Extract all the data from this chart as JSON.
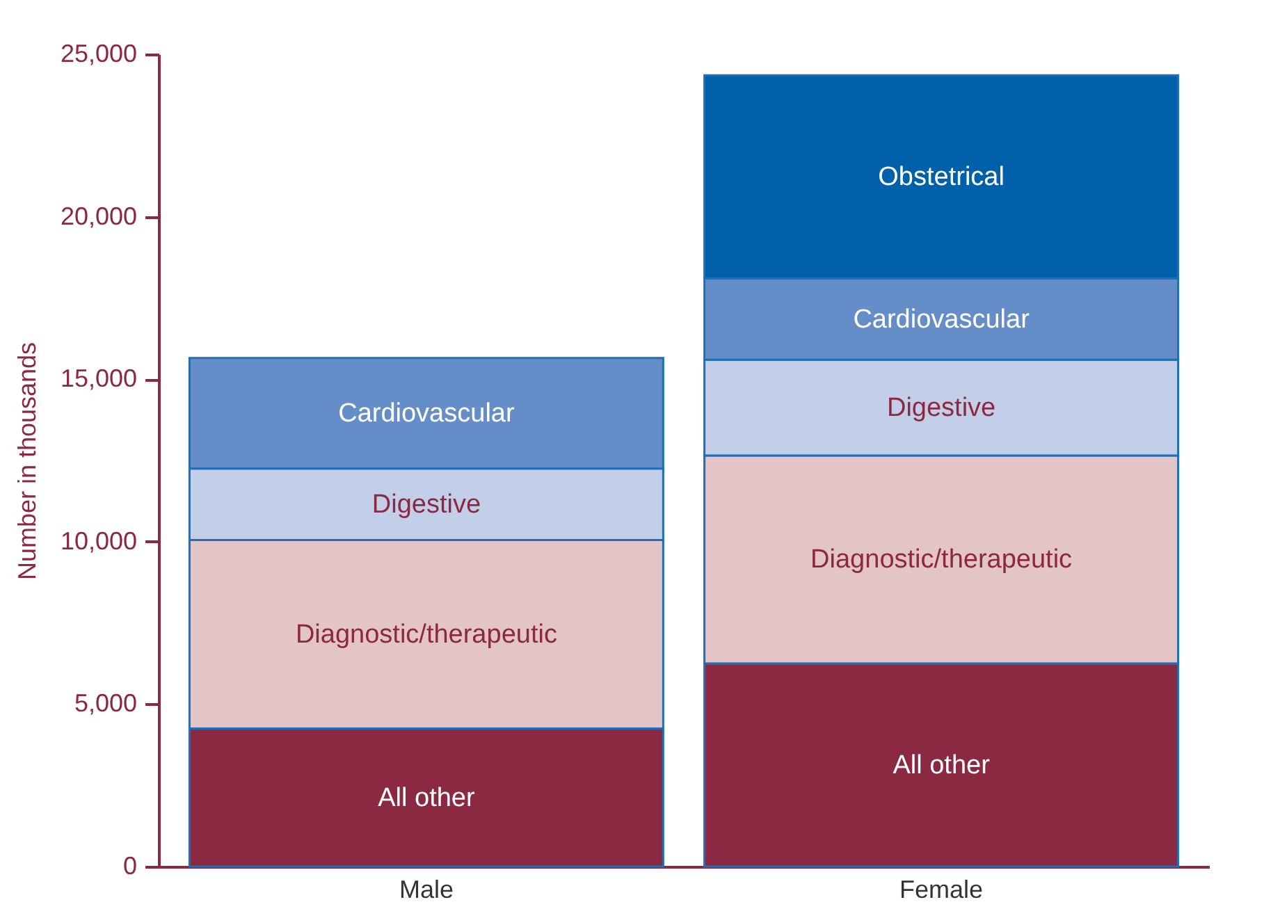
{
  "chart_data": {
    "type": "bar",
    "stacked": true,
    "ylabel": "Number in thousands",
    "categories": [
      "Male",
      "Female"
    ],
    "series": [
      {
        "name": "All other",
        "color": "#8b2942",
        "values": [
          4250,
          6250
        ]
      },
      {
        "name": "Diagnostic/therapeutic",
        "color": "#e4c5c7",
        "values": [
          5800,
          6400
        ]
      },
      {
        "name": "Digestive",
        "color": "#c3cfe8",
        "values": [
          2200,
          2950
        ]
      },
      {
        "name": "Cardiovascular",
        "color": "#658ec8",
        "values": [
          3400,
          2500
        ]
      },
      {
        "name": "Obstetrical",
        "color": "#0060aa",
        "values": [
          null,
          6250
        ]
      }
    ],
    "ylim": [
      0,
      25000
    ],
    "yticks": [
      0,
      {
        "value": 5000,
        "label": "5,000"
      },
      {
        "value": 10000,
        "label": "10,000"
      },
      {
        "value": 15000,
        "label": "15,000"
      },
      {
        "value": 20000,
        "label": "20,000"
      },
      {
        "value": 25000,
        "label": "25,000"
      }
    ],
    "grid": false,
    "legend": false
  }
}
